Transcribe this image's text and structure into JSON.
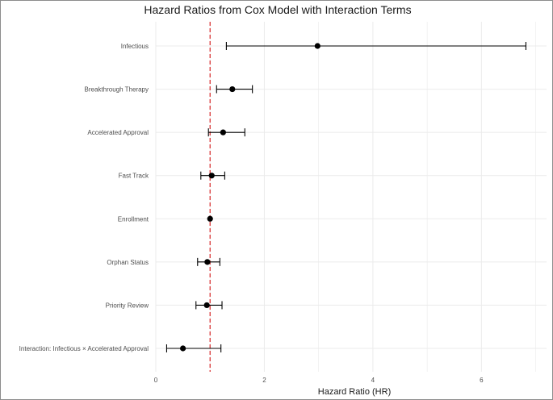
{
  "chart_data": {
    "type": "forest",
    "title": "Hazard Ratios from Cox Model with Interaction Terms",
    "xlabel": "Hazard Ratio (HR)",
    "ylabel": "",
    "xlim": [
      0,
      7.2
    ],
    "xticks": [
      0,
      2,
      4,
      6
    ],
    "reference_line": {
      "x": 1,
      "style": "dashed",
      "color": "#d62728"
    },
    "grid": true,
    "colors": {
      "point": "#000000",
      "whisker": "#000000",
      "grid": "#ebebeb"
    },
    "rows": [
      {
        "label": "Infectious",
        "hr": 2.98,
        "lower": 1.3,
        "upper": 6.82
      },
      {
        "label": "Breakthrough Therapy",
        "hr": 1.41,
        "lower": 1.12,
        "upper": 1.78
      },
      {
        "label": "Accelerated Approval",
        "hr": 1.24,
        "lower": 0.97,
        "upper": 1.64
      },
      {
        "label": "Fast Track",
        "hr": 1.03,
        "lower": 0.83,
        "upper": 1.27
      },
      {
        "label": "Enrollment",
        "hr": 1.0,
        "lower": 1.0,
        "upper": 1.0
      },
      {
        "label": "Orphan Status",
        "hr": 0.95,
        "lower": 0.77,
        "upper": 1.18
      },
      {
        "label": "Priority Review",
        "hr": 0.94,
        "lower": 0.74,
        "upper": 1.22
      },
      {
        "label": "Interaction: Infectious × Accelerated Approval",
        "hr": 0.5,
        "lower": 0.2,
        "upper": 1.2
      }
    ]
  }
}
